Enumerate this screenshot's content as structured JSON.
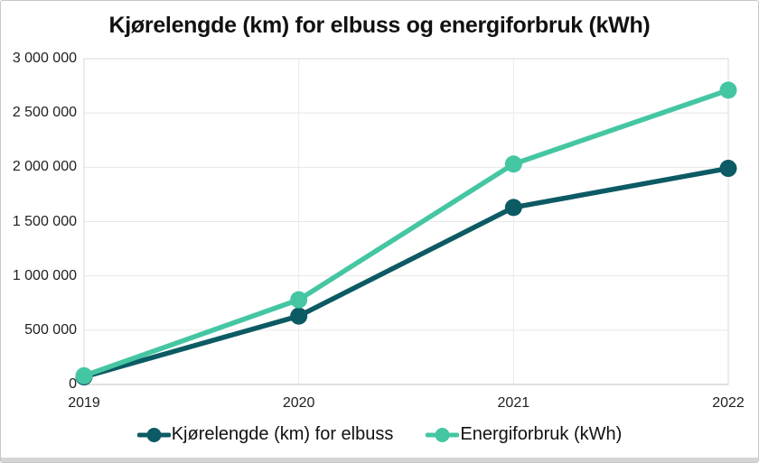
{
  "window": {
    "background_color": "#ffffff",
    "border_color": "#c6c6c6",
    "bottom_strip_color": "#d5d5d5"
  },
  "chart_data": {
    "type": "line",
    "title": "Kjørelengde (km) for elbuss og energiforbruk (kWh)",
    "categories": [
      "2019",
      "2020",
      "2021",
      "2022"
    ],
    "series": [
      {
        "name": "Kjørelengde (km) for elbuss",
        "color": "#0c5a64",
        "values": [
          70000,
          630000,
          1630000,
          1990000
        ]
      },
      {
        "name": "Energiforbruk (kWh)",
        "color": "#45c6a3",
        "values": [
          80000,
          780000,
          2030000,
          2710000
        ]
      }
    ],
    "xlabel": "",
    "ylabel": "",
    "ylim": [
      0,
      3000000
    ],
    "ytick_step": 500000,
    "ytick_labels": [
      "0",
      "500 000",
      "1 000 000",
      "1 500 000",
      "2 000 000",
      "2 500 000",
      "3 000 000"
    ],
    "grid": true,
    "plot_border": true,
    "gridline_color": "#e8e8e8",
    "plot_border_color": "#dedede",
    "axis_line_color": "#d2d2d2",
    "legend_position": "bottom",
    "marker": "circle",
    "line_width": 5.5,
    "marker_radius": 9.5
  }
}
